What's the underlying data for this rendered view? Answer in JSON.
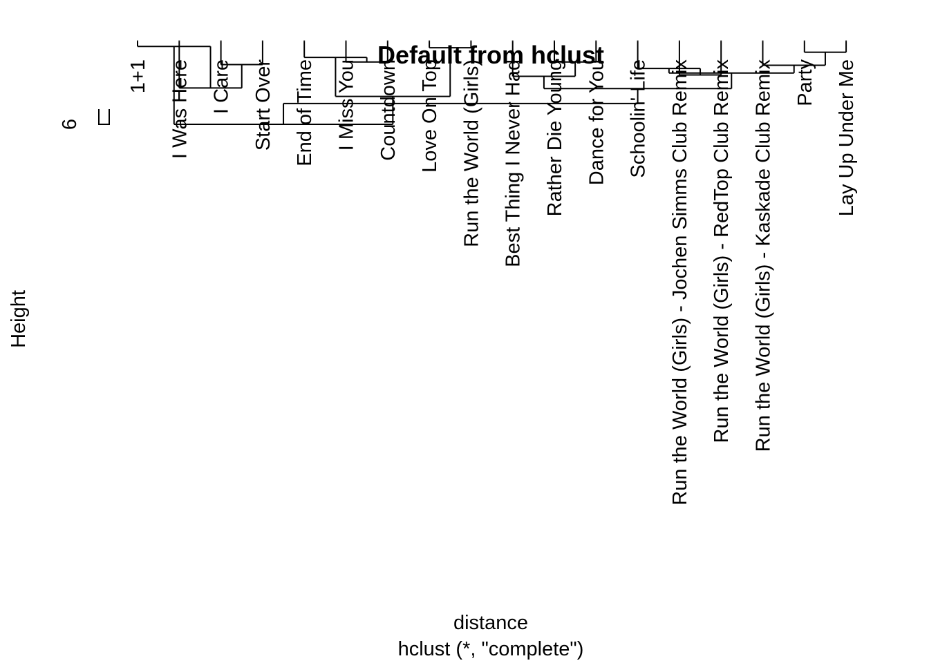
{
  "chart_data": {
    "type": "dendrogram",
    "title": "Default from hclust",
    "xlabel": "distance",
    "sub": "hclust (*, \"complete\")",
    "ylabel": "Height",
    "y_ticks": [
      {
        "value": 6,
        "label": "6"
      }
    ],
    "labels": [
      "1+1",
      "I Was Here",
      "I Care",
      "Start Over",
      "End of Time",
      "I Miss You",
      "Countdown",
      "Love On Top",
      "Run the World (Girls)",
      "Best Thing I Never Had",
      "Rather Die Young",
      "Dance for You",
      "Schoolin' Life",
      "Run the World (Girls) - Jochen Simms Club Remix",
      "Run the World (Girls) - RedTop Club Remix",
      "Run the World (Girls) - Kaskade Club Remix",
      "Party",
      "Lay Up Under Me"
    ],
    "merges": [
      {
        "left": "I Care",
        "right": "Start Over",
        "height": 2.67
      },
      {
        "left": "I Was Here",
        "right": [
          "I Care",
          "Start Over"
        ],
        "height": 2.31
      },
      {
        "left": "1+1",
        "right": [
          "I Was Here",
          "I Care",
          "Start Over"
        ],
        "height": 2.95
      },
      {
        "left": "I Miss You",
        "right": "Countdown",
        "height": 2.71
      },
      {
        "left": "End of Time",
        "right": [
          "I Miss You",
          "Countdown"
        ],
        "height": 2.78
      },
      {
        "left": "Love On Top",
        "right": "Run the World (Girls)",
        "height": 2.93
      },
      {
        "left": [
          "End of Time",
          "I Miss You",
          "Countdown"
        ],
        "right": [
          "Love On Top",
          "Run the World (Girls)"
        ],
        "height": 2.18
      },
      {
        "left": [
          "1+1",
          "I Was Here",
          "I Care",
          "Start Over"
        ],
        "right": [
          "End of Time",
          "I Miss You",
          "Countdown",
          "Love On Top",
          "Run the World (Girls)"
        ],
        "height": 1.75
      },
      {
        "left": "Rather Die Young",
        "right": "Dance for You",
        "height": 2.71
      },
      {
        "left": "Best Thing I Never Had",
        "right": [
          "Rather Die Young",
          "Dance for You"
        ],
        "height": 2.49
      },
      {
        "left": "Run the World (Girls) - Jochen Simms Club Remix",
        "right": "Run the World (Girls) - RedTop Club Remix",
        "height": 2.51
      },
      {
        "left": "Schoolin' Life",
        "right": [
          "Run the World (Girls) - Jochen Simms Club Remix",
          "Run the World (Girls) - RedTop Club Remix"
        ],
        "height": 2.61
      },
      {
        "left": "Party",
        "right": "Lay Up Under Me",
        "height": 2.86
      },
      {
        "left": "Run the World (Girls) - Kaskade Club Remix",
        "right": [
          "Party",
          "Lay Up Under Me"
        ],
        "height": 2.66
      },
      {
        "left": [
          "Schoolin' Life",
          "Run the World (Girls) - Jochen Simms Club Remix",
          "Run the World (Girls) - RedTop Club Remix"
        ],
        "right": [
          "Run the World (Girls) - Kaskade Club Remix",
          "Party",
          "Lay Up Under Me"
        ],
        "height": 2.54
      },
      {
        "left": [
          "Best Thing I Never Had",
          "Rather Die Young",
          "Dance for You"
        ],
        "right": [
          "Schoolin' Life",
          "Run the World (Girls) - Jochen Simms Club Remix",
          "Run the World (Girls) - RedTop Club Remix",
          "Run the World (Girls) - Kaskade Club Remix",
          "Party",
          "Lay Up Under Me"
        ],
        "height": 2.3
      },
      {
        "left": [
          "1+1",
          "I Was Here",
          "I Care",
          "Start Over",
          "End of Time",
          "I Miss You",
          "Countdown",
          "Love On Top",
          "Run the World (Girls)"
        ],
        "right": [
          "Best Thing I Never Had",
          "Rather Die Young",
          "Dance for You",
          "Schoolin' Life",
          "Run the World (Girls) - Jochen Simms Club Remix",
          "Run the World (Girls) - RedTop Club Remix",
          "Run the World (Girls) - Kaskade Club Remix",
          "Party",
          "Lay Up Under Me"
        ],
        "height": 2.07
      }
    ],
    "leaf_height": 3.02,
    "ylim": [
      0,
      3.1
    ]
  }
}
